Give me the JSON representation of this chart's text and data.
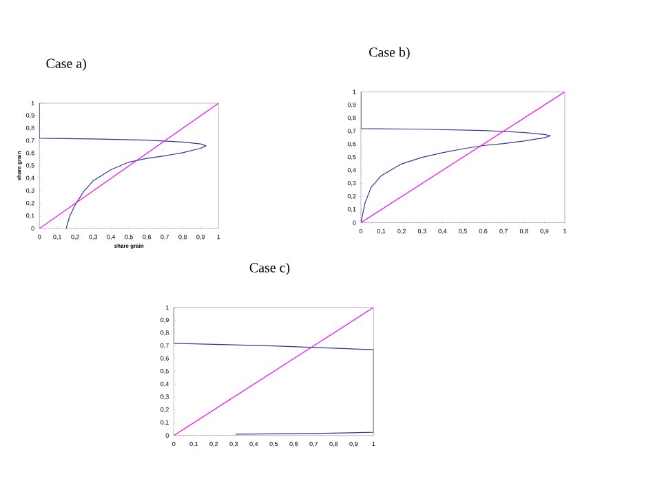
{
  "chart_data": [
    {
      "type": "line",
      "title": "Case a)",
      "xlabel": "share grain",
      "ylabel": "share grain",
      "xlim": [
        0,
        1
      ],
      "ylim": [
        0,
        1
      ],
      "xticks": [
        0,
        {
          "value": 0.1,
          "label": "0,1"
        },
        {
          "value": 0.2,
          "label": "0,2"
        },
        {
          "value": 0.3,
          "label": "0,3"
        },
        {
          "value": 0.4,
          "label": "0,4"
        },
        {
          "value": 0.5,
          "label": "0,5"
        },
        {
          "value": 0.6,
          "label": "0,6"
        },
        {
          "value": 0.7,
          "label": "0,7"
        },
        {
          "value": 0.8,
          "label": "0,8"
        },
        {
          "value": 0.9,
          "label": "0,9"
        },
        1
      ],
      "yticks": [
        0,
        {
          "value": 0.1,
          "label": "0,1"
        },
        {
          "value": 0.2,
          "label": "0,2"
        },
        {
          "value": 0.3,
          "label": "0,3"
        },
        {
          "value": 0.4,
          "label": "0,4"
        },
        {
          "value": 0.5,
          "label": "0,5"
        },
        {
          "value": 0.6,
          "label": "0,6"
        },
        {
          "value": 0.7,
          "label": "0,7"
        },
        {
          "value": 0.8,
          "label": "0,8"
        },
        {
          "value": 0.9,
          "label": "0,9"
        },
        1
      ],
      "series": [
        {
          "color": "#333399",
          "x": [
            0,
            0,
            0.3,
            0.6,
            0.8,
            0.9,
            0.93,
            0.9,
            0.8,
            0.7,
            0.6,
            0.5,
            0.4,
            0.3,
            0.25,
            0.2,
            0.17,
            0.155,
            0.15
          ],
          "values": [
            1,
            0.72,
            0.715,
            0.705,
            0.69,
            0.675,
            0.66,
            0.64,
            0.605,
            0.58,
            0.56,
            0.53,
            0.47,
            0.38,
            0.3,
            0.19,
            0.1,
            0.03,
            0
          ]
        },
        {
          "color": "#ff00ff",
          "x": [
            0,
            1
          ],
          "values": [
            0,
            1
          ]
        }
      ]
    },
    {
      "type": "line",
      "title": "Case b)",
      "xlim": [
        0,
        1
      ],
      "ylim": [
        0,
        1
      ],
      "xticks": [
        0,
        {
          "value": 0.1,
          "label": "0,1"
        },
        {
          "value": 0.2,
          "label": "0,2"
        },
        {
          "value": 0.3,
          "label": "0,3"
        },
        {
          "value": 0.4,
          "label": "0,4"
        },
        {
          "value": 0.5,
          "label": "0,5"
        },
        {
          "value": 0.6,
          "label": "0,6"
        },
        {
          "value": 0.7,
          "label": "0,7"
        },
        {
          "value": 0.8,
          "label": "0,8"
        },
        {
          "value": 0.9,
          "label": "0,9"
        },
        1
      ],
      "yticks": [
        0,
        {
          "value": 0.1,
          "label": "0,1"
        },
        {
          "value": 0.2,
          "label": "0,2"
        },
        {
          "value": 0.3,
          "label": "0,3"
        },
        {
          "value": 0.4,
          "label": "0,4"
        },
        {
          "value": 0.5,
          "label": "0,5"
        },
        {
          "value": 0.6,
          "label": "0,6"
        },
        {
          "value": 0.7,
          "label": "0,7"
        },
        {
          "value": 0.8,
          "label": "0,8"
        },
        {
          "value": 0.9,
          "label": "0,9"
        },
        1
      ],
      "series": [
        {
          "color": "#333399",
          "x": [
            0,
            0,
            0.3,
            0.6,
            0.8,
            0.9,
            0.93,
            0.9,
            0.8,
            0.7,
            0.6,
            0.5,
            0.4,
            0.3,
            0.2,
            0.1,
            0.05,
            0.02,
            0
          ],
          "values": [
            1,
            0.72,
            0.715,
            0.705,
            0.69,
            0.675,
            0.665,
            0.65,
            0.625,
            0.605,
            0.59,
            0.565,
            0.535,
            0.5,
            0.45,
            0.36,
            0.27,
            0.15,
            0
          ]
        },
        {
          "color": "#ff00ff",
          "x": [
            0,
            1
          ],
          "values": [
            0,
            1
          ]
        }
      ]
    },
    {
      "type": "line",
      "title": "Case c)",
      "xlim": [
        0,
        1
      ],
      "ylim": [
        0,
        1
      ],
      "xticks": [
        0,
        {
          "value": 0.1,
          "label": "0,1"
        },
        {
          "value": 0.2,
          "label": "0,2"
        },
        {
          "value": 0.3,
          "label": "0,3"
        },
        {
          "value": 0.4,
          "label": "0,4"
        },
        {
          "value": 0.5,
          "label": "0,5"
        },
        {
          "value": 0.6,
          "label": "0,6"
        },
        {
          "value": 0.7,
          "label": "0,7"
        },
        {
          "value": 0.8,
          "label": "0,8"
        },
        {
          "value": 0.9,
          "label": "0,9"
        },
        1
      ],
      "yticks": [
        0,
        {
          "value": 0.1,
          "label": "0,1"
        },
        {
          "value": 0.2,
          "label": "0,2"
        },
        {
          "value": 0.3,
          "label": "0,3"
        },
        {
          "value": 0.4,
          "label": "0,4"
        },
        {
          "value": 0.5,
          "label": "0,5"
        },
        {
          "value": 0.6,
          "label": "0,6"
        },
        {
          "value": 0.7,
          "label": "0,7"
        },
        {
          "value": 0.8,
          "label": "0,8"
        },
        {
          "value": 0.9,
          "label": "0,9"
        },
        1
      ],
      "series": [
        {
          "color": "#333399",
          "x": [
            0,
            0,
            0.5,
            1,
            1,
            0.7,
            0.31
          ],
          "values": [
            1,
            0.72,
            0.7,
            0.67,
            0.025,
            0.015,
            0.01
          ]
        },
        {
          "color": "#ff00ff",
          "x": [
            0,
            1
          ],
          "values": [
            0,
            1
          ]
        }
      ]
    }
  ]
}
